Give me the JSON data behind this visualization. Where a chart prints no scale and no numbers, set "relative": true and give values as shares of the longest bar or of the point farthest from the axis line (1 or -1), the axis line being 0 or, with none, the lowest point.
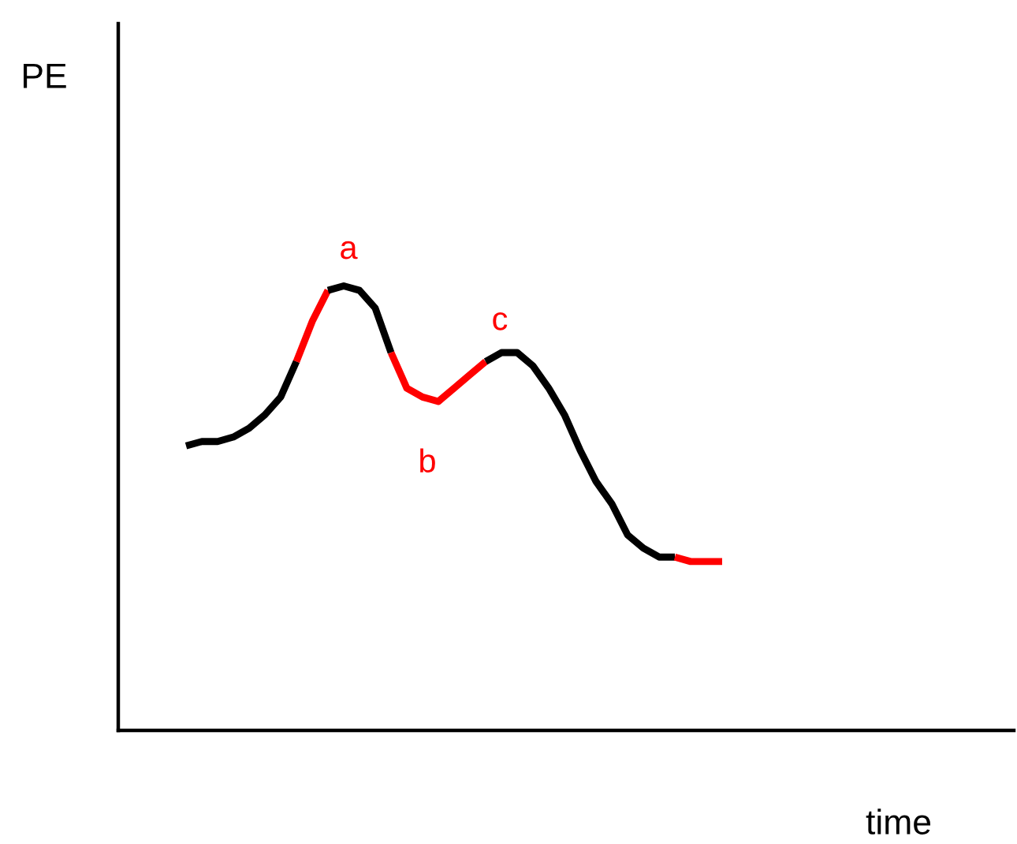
{
  "chart_data": {
    "type": "line",
    "relative": true,
    "xlabel": "time",
    "categories": [
      null,
      null,
      null,
      null,
      null,
      null,
      null,
      null,
      null,
      null,
      null,
      null,
      null,
      null,
      null,
      null,
      null,
      null,
      null,
      null,
      null,
      null,
      null,
      null,
      null,
      null,
      null,
      null,
      null,
      null,
      null,
      null,
      null,
      null,
      null,
      null,
      null,
      null,
      null,
      null,
      null,
      null,
      null,
      null,
      null,
      null,
      null,
      null,
      null,
      null,
      null,
      null,
      null,
      null,
      null,
      null,
      null
    ],
    "series": [
      {
        "color": "#000000",
        "values": [
          null,
          null,
          null,
          null,
          0.64,
          0.65,
          0.65,
          0.66,
          0.68,
          0.71,
          0.75,
          0.83,
          null,
          null,
          null,
          null,
          null,
          null,
          null,
          null,
          null,
          null,
          null,
          null,
          null,
          null,
          null,
          null,
          null,
          null,
          null,
          null,
          null,
          null,
          null,
          null,
          null,
          null,
          null,
          null,
          null,
          null,
          null,
          null,
          null,
          null,
          null,
          null,
          null,
          null,
          null,
          null,
          null,
          null,
          null,
          null,
          null
        ]
      },
      {
        "color": "#ff0000",
        "values": [
          null,
          null,
          null,
          null,
          null,
          null,
          null,
          null,
          null,
          null,
          null,
          0.83,
          0.92,
          0.99,
          null,
          null,
          null,
          null,
          null,
          null,
          null,
          null,
          null,
          null,
          null,
          null,
          null,
          null,
          null,
          null,
          null,
          null,
          null,
          null,
          null,
          null,
          null,
          null,
          null,
          null,
          null,
          null,
          null,
          null,
          null,
          null,
          null,
          null,
          null,
          null,
          null,
          null,
          null,
          null,
          null,
          null,
          null
        ]
      },
      {
        "color": "#000000",
        "values": [
          null,
          null,
          null,
          null,
          null,
          null,
          null,
          null,
          null,
          null,
          null,
          null,
          null,
          0.99,
          1,
          0.99,
          0.95,
          0.85,
          null,
          null,
          null,
          null,
          null,
          null,
          null,
          null,
          null,
          null,
          null,
          null,
          null,
          null,
          null,
          null,
          null,
          null,
          null,
          null,
          null,
          null,
          null,
          null,
          null,
          null,
          null,
          null,
          null,
          null,
          null,
          null,
          null,
          null,
          null,
          null,
          null,
          null,
          null
        ]
      },
      {
        "color": "#ff0000",
        "values": [
          null,
          null,
          null,
          null,
          null,
          null,
          null,
          null,
          null,
          null,
          null,
          null,
          null,
          null,
          null,
          null,
          null,
          0.85,
          0.77,
          0.75,
          0.74,
          0.77,
          0.8,
          0.83,
          null,
          null,
          null,
          null,
          null,
          null,
          null,
          null,
          null,
          null,
          null,
          null,
          null,
          null,
          null,
          null,
          null,
          null,
          null,
          null,
          null,
          null,
          null,
          null,
          null,
          null,
          null,
          null,
          null,
          null,
          null,
          null,
          null
        ]
      },
      {
        "color": "#000000",
        "values": [
          null,
          null,
          null,
          null,
          null,
          null,
          null,
          null,
          null,
          null,
          null,
          null,
          null,
          null,
          null,
          null,
          null,
          null,
          null,
          null,
          null,
          null,
          null,
          0.83,
          0.85,
          0.85,
          0.82,
          0.77,
          0.71,
          0.63,
          0.56,
          0.51,
          0.44,
          0.41,
          0.39,
          0.39,
          null,
          null,
          null,
          null,
          null,
          null,
          null,
          null,
          null,
          null,
          null,
          null,
          null,
          null,
          null,
          null,
          null,
          null,
          null,
          null,
          null
        ]
      },
      {
        "color": "#ff0000",
        "values": [
          null,
          null,
          null,
          null,
          null,
          null,
          null,
          null,
          null,
          null,
          null,
          null,
          null,
          null,
          null,
          null,
          null,
          null,
          null,
          null,
          null,
          null,
          null,
          null,
          null,
          null,
          null,
          null,
          null,
          null,
          null,
          null,
          null,
          null,
          null,
          0.39,
          0.38,
          0.38,
          0.38,
          null,
          null,
          null,
          null,
          null,
          null,
          null,
          null,
          null,
          null,
          null,
          null,
          null,
          null,
          null,
          null,
          null,
          null
        ]
      }
    ],
    "annotations": [
      "PE",
      "a",
      "b",
      "c"
    ],
    "line_style": "solid",
    "marker": "none",
    "grid": false,
    "legend": false
  }
}
